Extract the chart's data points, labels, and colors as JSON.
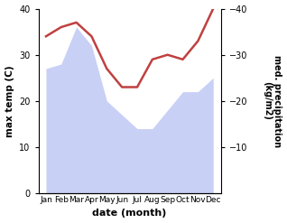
{
  "months": [
    "Jan",
    "Feb",
    "Mar",
    "Apr",
    "May",
    "Jun",
    "Jul",
    "Aug",
    "Sep",
    "Oct",
    "Nov",
    "Dec"
  ],
  "max_temp": [
    27,
    28,
    36,
    32,
    20,
    17,
    14,
    14,
    18,
    22,
    22,
    25
  ],
  "precipitation": [
    34,
    36,
    37,
    34,
    27,
    23,
    23,
    29,
    30,
    29,
    33,
    40
  ],
  "temp_color_fill": "#c8d0f5",
  "precip_color": "#c04040",
  "ylabel_left": "max temp (C)",
  "ylabel_right": "med. precipitation\n(kg/m2)",
  "xlabel": "date (month)",
  "ylim_left": [
    0,
    40
  ],
  "ylim_right": [
    0,
    40
  ],
  "yticks_left": [
    0,
    10,
    20,
    30,
    40
  ],
  "yticks_right": [
    10,
    20,
    30,
    40
  ],
  "bg_color": "#ffffff",
  "figsize": [
    3.18,
    2.47
  ],
  "dpi": 100
}
